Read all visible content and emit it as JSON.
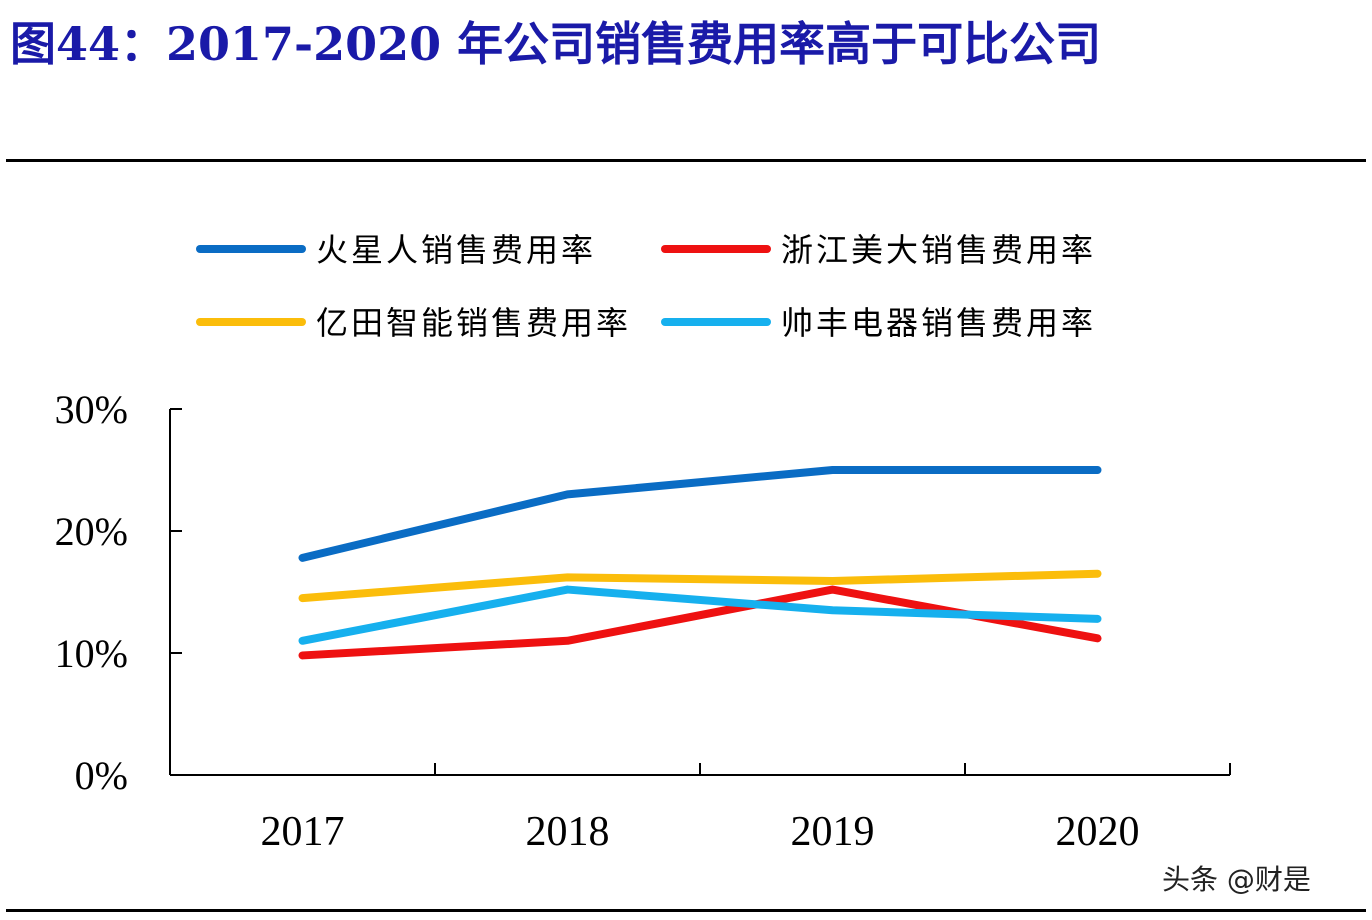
{
  "title": "图44：2017-2020 年公司销售费用率高于可比公司",
  "watermark": "头条 @财是",
  "chart_data": {
    "type": "line",
    "categories": [
      "2017",
      "2018",
      "2019",
      "2020"
    ],
    "ylim": [
      0,
      30
    ],
    "yticks": [
      "0%",
      "10%",
      "20%",
      "30%"
    ],
    "ytick_values": [
      0,
      10,
      20,
      30
    ],
    "unit": "%",
    "grid": false,
    "legend_position": "top",
    "series": [
      {
        "name": "火星人销售费用率",
        "color": "#0a6cc4",
        "values": [
          17.8,
          23.0,
          25.0,
          25.0
        ]
      },
      {
        "name": "浙江美大销售费用率",
        "color": "#ee1111",
        "values": [
          9.8,
          11.0,
          15.2,
          11.2
        ]
      },
      {
        "name": "亿田智能销售费用率",
        "color": "#fbbd0b",
        "values": [
          14.5,
          16.2,
          15.9,
          16.5
        ]
      },
      {
        "name": "帅丰电器销售费用率",
        "color": "#16b0ee",
        "values": [
          11.0,
          15.2,
          13.5,
          12.8
        ]
      }
    ]
  }
}
